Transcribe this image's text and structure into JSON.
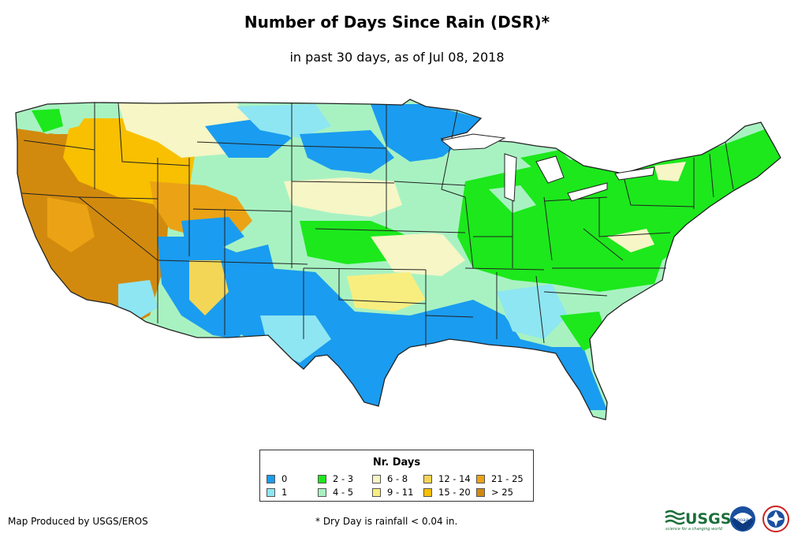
{
  "title": "Number of Days Since Rain (DSR)*",
  "subtitle": "in past 30 days, as of Jul 08, 2018",
  "legend": {
    "title": "Nr. Days",
    "items": [
      {
        "label": "0",
        "color": "#1a9cf0"
      },
      {
        "label": "1",
        "color": "#8ee6f2"
      },
      {
        "label": "2 - 3",
        "color": "#1ce81c"
      },
      {
        "label": "4 - 5",
        "color": "#a8f2c2"
      },
      {
        "label": "6 - 8",
        "color": "#f6f6c6"
      },
      {
        "label": "9 - 11",
        "color": "#f8ee80"
      },
      {
        "label": "12 - 14",
        "color": "#f4d656"
      },
      {
        "label": "15 - 20",
        "color": "#f8c000"
      },
      {
        "label": "21 - 25",
        "color": "#eba315"
      },
      {
        "label": "> 25",
        "color": "#d28a0e"
      }
    ]
  },
  "credit": "Map Produced by USGS/EROS",
  "footnote": "* Dry Day is rainfall < 0.04 in.",
  "logos": {
    "usgs_text": "USGS",
    "usgs_tagline": "science for a changing world",
    "noaa_text": "noaa"
  }
}
